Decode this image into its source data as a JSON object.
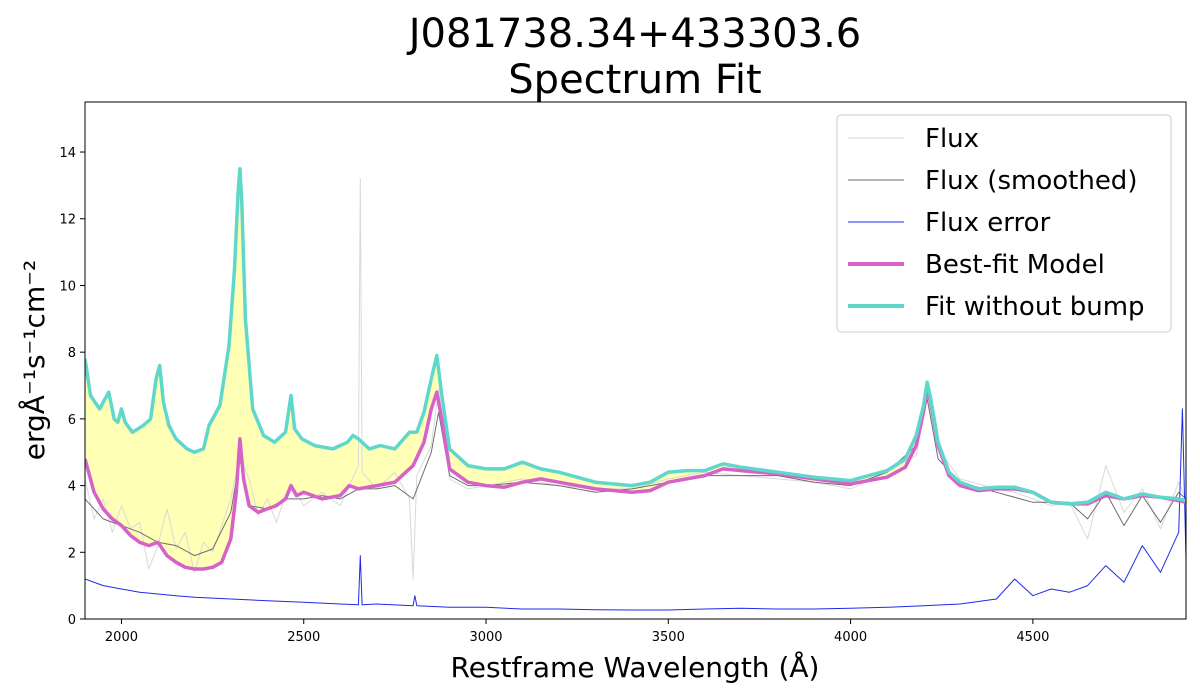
{
  "chart_data": {
    "type": "line",
    "title": "J081738.34+433303.6",
    "subtitle": "Spectrum Fit",
    "xlabel": "Restframe Wavelength (Å)",
    "ylabel": "ergÅ⁻¹s⁻¹cm⁻²",
    "xlim": [
      1900,
      4920
    ],
    "ylim": [
      0,
      15.5
    ],
    "xticks": [
      2000,
      2500,
      3000,
      3500,
      4000,
      4500
    ],
    "yticks": [
      0,
      2,
      4,
      6,
      8,
      10,
      12,
      14
    ],
    "grid": false,
    "legend_position": "top-right",
    "colors": {
      "flux": "#d9d9d9",
      "flux_smoothed": "#6e6e6e",
      "flux_error": "#1f2be8",
      "best_fit": "#d662c9",
      "fit_without_bump": "#5fd8cb",
      "bump_fill": "#ffffa8"
    },
    "series": [
      {
        "name": "Flux",
        "x": [
          1900,
          1925,
          1950,
          1975,
          2000,
          2025,
          2050,
          2075,
          2100,
          2125,
          2150,
          2175,
          2200,
          2225,
          2250,
          2275,
          2300,
          2325,
          2350,
          2375,
          2400,
          2425,
          2450,
          2475,
          2500,
          2550,
          2600,
          2650,
          2655,
          2660,
          2700,
          2750,
          2790,
          2800,
          2810,
          2850,
          2870,
          2900,
          2950,
          3000,
          3100,
          3200,
          3300,
          3400,
          3500,
          3600,
          3700,
          3800,
          3900,
          4000,
          4100,
          4180,
          4210,
          4240,
          4300,
          4400,
          4450,
          4500,
          4550,
          4600,
          4650,
          4700,
          4750,
          4800,
          4850,
          4900,
          4920
        ],
        "y": [
          4.2,
          3.0,
          3.6,
          2.6,
          3.4,
          2.7,
          2.9,
          1.5,
          2.2,
          3.3,
          2.1,
          2.6,
          1.4,
          2.3,
          2.0,
          2.8,
          3.6,
          4.9,
          4.2,
          3.1,
          3.6,
          2.9,
          3.7,
          3.9,
          3.4,
          3.8,
          3.4,
          4.6,
          13.2,
          4.4,
          3.9,
          4.4,
          3.6,
          1.2,
          4.3,
          5.2,
          6.9,
          4.2,
          3.9,
          4.0,
          4.2,
          4.0,
          3.9,
          3.9,
          4.2,
          4.4,
          4.3,
          4.2,
          4.1,
          3.9,
          4.4,
          4.9,
          6.7,
          5.1,
          4.2,
          3.9,
          3.8,
          3.6,
          3.4,
          3.5,
          2.4,
          4.6,
          3.2,
          3.9,
          2.7,
          4.1,
          3.6
        ]
      },
      {
        "name": "Flux (smoothed)",
        "x": [
          1900,
          1950,
          2000,
          2050,
          2100,
          2150,
          2200,
          2250,
          2300,
          2325,
          2350,
          2400,
          2450,
          2500,
          2550,
          2600,
          2650,
          2700,
          2750,
          2800,
          2850,
          2870,
          2900,
          2950,
          3000,
          3100,
          3200,
          3300,
          3400,
          3500,
          3600,
          3700,
          3800,
          3900,
          4000,
          4100,
          4180,
          4210,
          4240,
          4300,
          4400,
          4500,
          4600,
          4650,
          4700,
          4750,
          4800,
          4850,
          4900,
          4920
        ],
        "y": [
          3.6,
          3.0,
          2.8,
          2.6,
          2.3,
          2.2,
          1.9,
          2.1,
          3.2,
          4.8,
          3.4,
          3.3,
          3.6,
          3.6,
          3.7,
          3.6,
          3.9,
          3.9,
          4.0,
          3.6,
          5.0,
          6.2,
          4.3,
          4.0,
          4.0,
          4.1,
          4.0,
          3.8,
          3.9,
          4.1,
          4.3,
          4.3,
          4.3,
          4.1,
          4.0,
          4.4,
          5.2,
          6.6,
          4.8,
          4.1,
          3.8,
          3.5,
          3.5,
          3.0,
          3.8,
          2.8,
          3.7,
          2.9,
          3.8,
          3.6
        ]
      },
      {
        "name": "Flux error",
        "x": [
          1900,
          1950,
          2000,
          2050,
          2100,
          2150,
          2200,
          2300,
          2400,
          2500,
          2600,
          2650,
          2655,
          2660,
          2700,
          2800,
          2805,
          2810,
          2900,
          3000,
          3100,
          3200,
          3300,
          3400,
          3500,
          3600,
          3700,
          3800,
          3900,
          4000,
          4100,
          4200,
          4300,
          4400,
          4450,
          4500,
          4550,
          4600,
          4650,
          4700,
          4750,
          4800,
          4850,
          4900,
          4910,
          4920
        ],
        "y": [
          1.2,
          1.0,
          0.9,
          0.8,
          0.75,
          0.7,
          0.65,
          0.6,
          0.55,
          0.5,
          0.45,
          0.43,
          1.9,
          0.43,
          0.45,
          0.4,
          0.7,
          0.4,
          0.35,
          0.35,
          0.3,
          0.3,
          0.28,
          0.27,
          0.27,
          0.3,
          0.32,
          0.3,
          0.3,
          0.32,
          0.35,
          0.4,
          0.45,
          0.6,
          1.2,
          0.7,
          0.9,
          0.8,
          1.0,
          1.6,
          1.1,
          2.2,
          1.4,
          2.6,
          6.3,
          1.8
        ]
      },
      {
        "name": "Best-fit Model",
        "x": [
          1900,
          1925,
          1950,
          1975,
          2000,
          2025,
          2050,
          2075,
          2100,
          2125,
          2150,
          2175,
          2200,
          2225,
          2250,
          2275,
          2300,
          2315,
          2325,
          2335,
          2350,
          2375,
          2400,
          2425,
          2450,
          2465,
          2480,
          2500,
          2550,
          2600,
          2625,
          2650,
          2700,
          2750,
          2800,
          2830,
          2850,
          2865,
          2880,
          2900,
          2950,
          3000,
          3050,
          3100,
          3150,
          3200,
          3300,
          3400,
          3450,
          3500,
          3550,
          3600,
          3650,
          3700,
          3800,
          3900,
          4000,
          4100,
          4150,
          4180,
          4200,
          4210,
          4220,
          4240,
          4270,
          4300,
          4350,
          4400,
          4450,
          4500,
          4550,
          4600,
          4650,
          4700,
          4750,
          4800,
          4850,
          4900,
          4920
        ],
        "y": [
          4.8,
          3.8,
          3.3,
          3.0,
          2.8,
          2.5,
          2.3,
          2.2,
          2.3,
          1.9,
          1.7,
          1.55,
          1.5,
          1.5,
          1.55,
          1.7,
          2.4,
          3.8,
          5.4,
          4.2,
          3.4,
          3.2,
          3.3,
          3.4,
          3.6,
          4.0,
          3.7,
          3.8,
          3.6,
          3.7,
          4.0,
          3.9,
          4.0,
          4.1,
          4.6,
          5.3,
          6.3,
          6.8,
          5.9,
          4.5,
          4.1,
          4.0,
          3.95,
          4.1,
          4.2,
          4.1,
          3.9,
          3.8,
          3.85,
          4.1,
          4.2,
          4.3,
          4.5,
          4.45,
          4.35,
          4.2,
          4.05,
          4.25,
          4.55,
          5.2,
          6.2,
          6.9,
          6.5,
          5.2,
          4.3,
          4.0,
          3.85,
          3.9,
          3.9,
          3.8,
          3.5,
          3.45,
          3.45,
          3.7,
          3.6,
          3.7,
          3.65,
          3.55,
          3.5
        ]
      },
      {
        "name": "Fit without bump",
        "x": [
          1900,
          1915,
          1940,
          1965,
          1980,
          1990,
          2000,
          2010,
          2030,
          2060,
          2080,
          2095,
          2105,
          2115,
          2130,
          2150,
          2180,
          2200,
          2225,
          2240,
          2270,
          2295,
          2310,
          2320,
          2325,
          2330,
          2340,
          2360,
          2390,
          2420,
          2450,
          2465,
          2475,
          2495,
          2530,
          2580,
          2620,
          2635,
          2650,
          2680,
          2710,
          2750,
          2790,
          2810,
          2830,
          2850,
          2865,
          2880,
          2900,
          2950,
          3000,
          3050,
          3100,
          3150,
          3200,
          3300,
          3400,
          3450,
          3500,
          3550,
          3600,
          3650,
          3700,
          3800,
          3900,
          4000,
          4100,
          4150,
          4180,
          4200,
          4210,
          4220,
          4240,
          4270,
          4300,
          4350,
          4400,
          4450,
          4500,
          4550,
          4600,
          4650,
          4700,
          4750,
          4800,
          4850,
          4900,
          4920
        ],
        "y": [
          7.8,
          6.7,
          6.3,
          6.8,
          6.0,
          5.9,
          6.3,
          5.9,
          5.6,
          5.8,
          6.0,
          7.2,
          7.6,
          6.5,
          5.8,
          5.4,
          5.1,
          5.0,
          5.1,
          5.8,
          6.4,
          8.2,
          10.5,
          12.8,
          13.5,
          12.5,
          9.0,
          6.3,
          5.5,
          5.3,
          5.6,
          6.7,
          5.7,
          5.4,
          5.2,
          5.1,
          5.3,
          5.5,
          5.4,
          5.1,
          5.2,
          5.1,
          5.6,
          5.6,
          6.2,
          7.2,
          7.9,
          6.6,
          5.1,
          4.6,
          4.5,
          4.5,
          4.7,
          4.5,
          4.4,
          4.1,
          4.0,
          4.1,
          4.4,
          4.45,
          4.45,
          4.65,
          4.55,
          4.4,
          4.25,
          4.15,
          4.45,
          4.8,
          5.5,
          6.4,
          7.1,
          6.6,
          5.3,
          4.4,
          4.1,
          3.9,
          3.95,
          3.95,
          3.8,
          3.5,
          3.45,
          3.5,
          3.8,
          3.6,
          3.75,
          3.65,
          3.6,
          3.55
        ]
      }
    ]
  }
}
